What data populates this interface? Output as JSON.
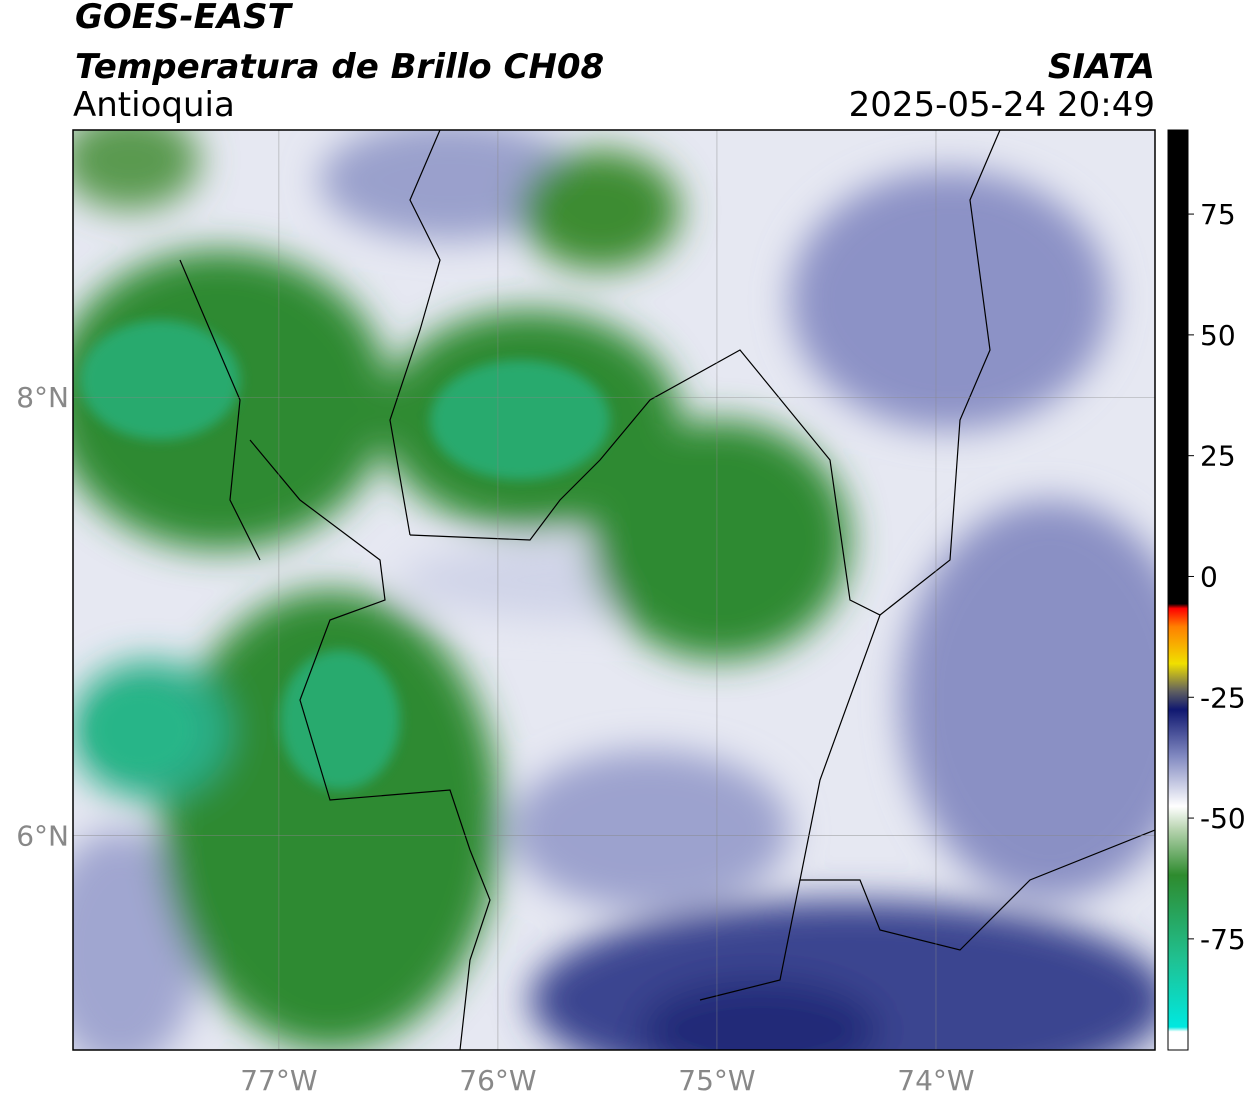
{
  "header": {
    "title": "GOES-EAST",
    "subtitle": "Temperatura de Brillo CH08",
    "region": "Antioquia",
    "source": "SIATA",
    "timestamp": "2025-05-24 20:49"
  },
  "map": {
    "xlim": [
      -77.94,
      -73.0
    ],
    "ylim": [
      5.02,
      9.22
    ],
    "xticks": [
      {
        "value": -77,
        "label": "77°W"
      },
      {
        "value": -76,
        "label": "76°W"
      },
      {
        "value": -75,
        "label": "75°W"
      },
      {
        "value": -74,
        "label": "74°W"
      }
    ],
    "yticks": [
      {
        "value": 8,
        "label": "8°N"
      },
      {
        "value": 6,
        "label": "6°N"
      }
    ]
  },
  "colorbar": {
    "lim": [
      -98,
      92.4
    ],
    "ticks": [
      75,
      50,
      25,
      0,
      -25,
      -50,
      -75
    ]
  }
}
